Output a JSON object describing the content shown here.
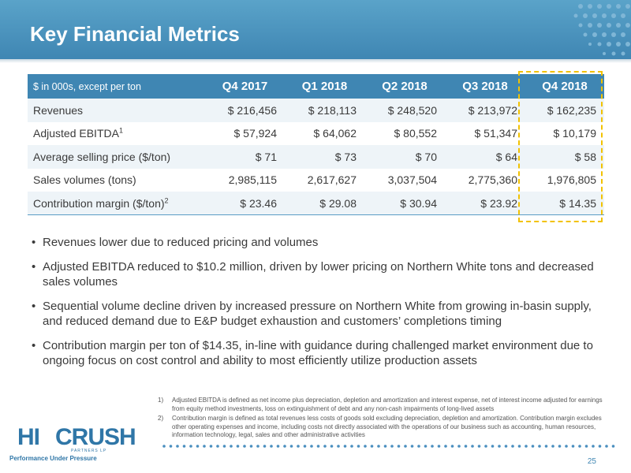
{
  "header": {
    "title": "Key Financial Metrics"
  },
  "table": {
    "unit_label": "$ in 000s, except per ton",
    "columns": [
      "Q4 2017",
      "Q1 2018",
      "Q2 2018",
      "Q3 2018",
      "Q4 2018"
    ],
    "rows": [
      {
        "label": "Revenues",
        "sup": "",
        "values": [
          "$ 216,456",
          "$ 218,113",
          "$ 248,520",
          "$ 213,972",
          "$ 162,235"
        ]
      },
      {
        "label": "Adjusted EBITDA",
        "sup": "1",
        "values": [
          "$ 57,924",
          "$ 64,062",
          "$ 80,552",
          "$ 51,347",
          "$ 10,179"
        ]
      },
      {
        "label": "Average selling price ($/ton)",
        "sup": "",
        "values": [
          "$ 71",
          "$ 73",
          "$ 70",
          "$ 64",
          "$ 58"
        ]
      },
      {
        "label": "Sales volumes (tons)",
        "sup": "",
        "values": [
          "2,985,115",
          "2,617,627",
          "3,037,504",
          "2,775,360",
          "1,976,805"
        ]
      },
      {
        "label": "Contribution margin ($/ton)",
        "sup": "2",
        "values": [
          "$ 23.46",
          "$ 29.08",
          "$ 30.94",
          "$ 23.92",
          "$ 14.35"
        ]
      }
    ],
    "highlight_color": "#f2c200"
  },
  "bullets": [
    "Revenues lower due to reduced pricing and volumes",
    "Adjusted EBITDA reduced to $10.2 million, driven by lower pricing on Northern White tons and decreased sales volumes",
    "Sequential volume decline driven by increased pressure on Northern White from growing in-basin supply, and reduced demand due to E&P budget exhaustion and customers’ completions timing",
    "Contribution margin per ton of $14.35, in-line with guidance during challenged market environment due to ongoing focus on cost control and ability to most efficiently utilize production assets"
  ],
  "footnotes": [
    {
      "num": "1)",
      "text": "Adjusted EBITDA is defined as net income plus depreciation, depletion and amortization and interest expense, net of interest income adjusted for earnings from equity method investments, loss on extinguishment of debt and any non-cash impairments of long-lived assets"
    },
    {
      "num": "2)",
      "text": "Contribution margin is defined as total revenues less costs of goods sold excluding depreciation, depletion and amortization. Contribution margin excludes other operating expenses and income, including costs not directly associated with the operations of our business such as accounting, human resources, information technology, legal, sales and other administrative activities"
    }
  ],
  "logo": {
    "hi": "HI",
    "crush": "CRUSH",
    "partners": "PARTNERS LP",
    "tagline": "Performance Under Pressure"
  },
  "page_number": "25",
  "colors": {
    "brand_blue": "#3f86b3",
    "header_light": "#5aa3c9"
  }
}
